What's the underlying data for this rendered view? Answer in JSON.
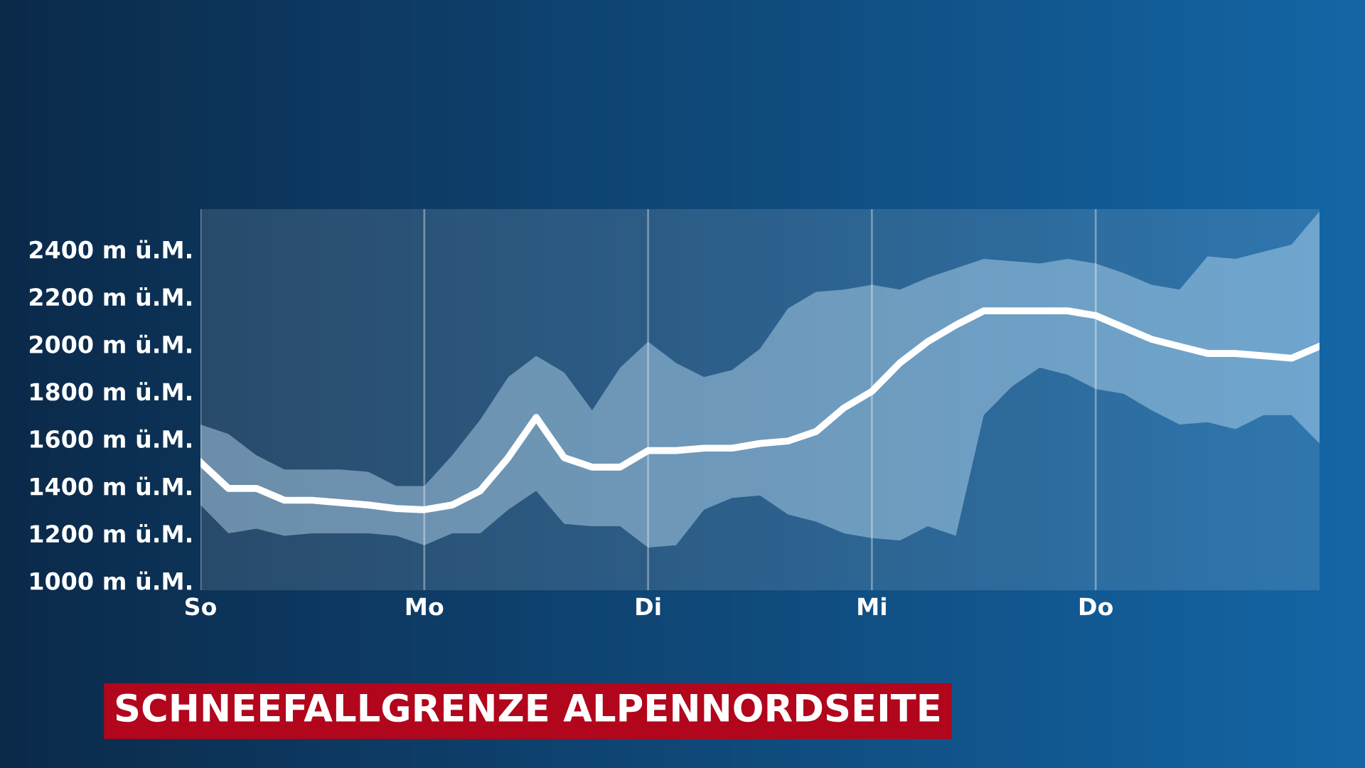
{
  "chart_data": {
    "type": "line",
    "title": "SCHNEEFALLGRENZE ALPENNORDSEITE",
    "categories": [
      "So",
      null,
      null,
      null,
      null,
      null,
      null,
      null,
      "Mo",
      null,
      null,
      null,
      null,
      null,
      null,
      null,
      "Di",
      null,
      null,
      null,
      null,
      null,
      null,
      null,
      "Mi",
      null,
      null,
      null,
      null,
      null,
      null,
      null,
      "Do",
      null,
      null,
      null,
      null,
      null,
      null,
      null,
      null
    ],
    "ylim": [
      960,
      2570
    ],
    "yticks": [
      {
        "value": 1000,
        "label": "1000 m ü.M."
      },
      {
        "value": 1200,
        "label": "1200 m ü.M."
      },
      {
        "value": 1400,
        "label": "1400 m ü.M."
      },
      {
        "value": 1600,
        "label": "1600 m ü.M."
      },
      {
        "value": 1800,
        "label": "1800 m ü.M."
      },
      {
        "value": 2000,
        "label": "2000 m ü.M."
      },
      {
        "value": 2200,
        "label": "2200 m ü.M."
      },
      {
        "value": 2400,
        "label": "2400 m ü.M."
      }
    ],
    "grid": "x",
    "legend": false,
    "marker": "none",
    "line_style": "solid",
    "series": [
      {
        "color": "#ffffff",
        "values": [
          1500,
          1390,
          1390,
          1340,
          1340,
          1330,
          1320,
          1305,
          1300,
          1320,
          1380,
          1520,
          1690,
          1520,
          1480,
          1480,
          1550,
          1550,
          1560,
          1560,
          1580,
          1590,
          1630,
          1730,
          1800,
          1920,
          2010,
          2080,
          2140,
          2140,
          2140,
          2140,
          2120,
          2070,
          2020,
          1990,
          1960,
          1960,
          1950,
          1940,
          1990
        ],
        "upper": [
          1660,
          1620,
          1530,
          1470,
          1470,
          1470,
          1460,
          1400,
          1400,
          1530,
          1680,
          1860,
          1950,
          1880,
          1720,
          1900,
          2010,
          1920,
          1860,
          1890,
          1980,
          2150,
          2220,
          2230,
          2250,
          2230,
          2280,
          2320,
          2360,
          2350,
          2340,
          2360,
          2340,
          2300,
          2250,
          2230,
          2370,
          2360,
          2390,
          2420,
          2560
        ],
        "lower": [
          1320,
          1200,
          1220,
          1190,
          1200,
          1200,
          1200,
          1190,
          1150,
          1200,
          1200,
          1300,
          1380,
          1240,
          1230,
          1230,
          1140,
          1150,
          1300,
          1350,
          1360,
          1280,
          1250,
          1200,
          1180,
          1170,
          1230,
          1190,
          1700,
          1820,
          1900,
          1870,
          1810,
          1790,
          1720,
          1660,
          1670,
          1640,
          1700,
          1700,
          1580
        ]
      }
    ]
  }
}
